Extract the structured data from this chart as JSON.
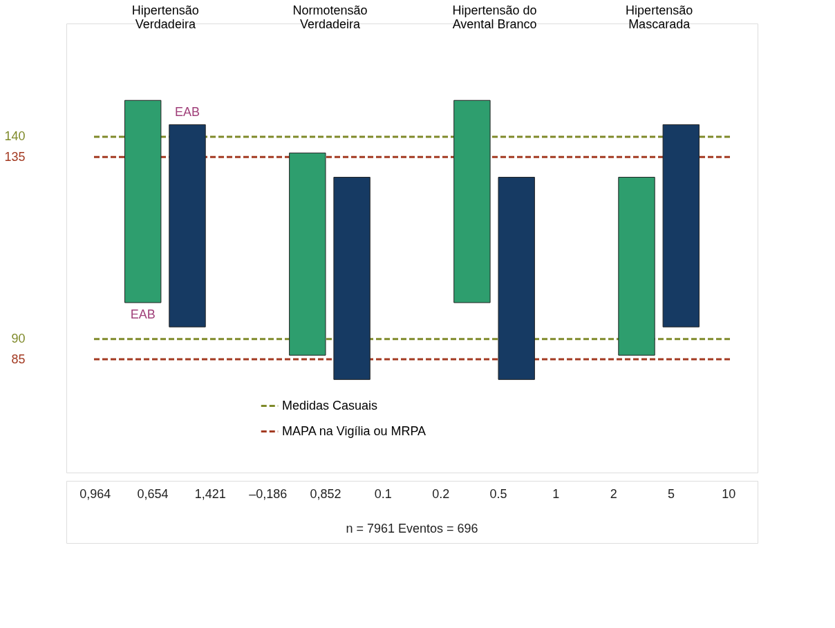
{
  "chart_data": {
    "type": "bar",
    "categories": [
      "Hipertensão\nVerdadeira",
      "Normotensão\nVerdadeira",
      "Hipertensão do\nAvental Branco",
      "Hipertensão\nMascarada"
    ],
    "series": [
      {
        "color": "#2e9e6e",
        "values": [
          50,
          50,
          50,
          44
        ],
        "base": [
          99,
          86,
          99,
          86
        ]
      },
      {
        "color": "#163a63",
        "values": [
          50,
          50,
          50,
          50
        ],
        "base": [
          93,
          80,
          80,
          93
        ]
      }
    ],
    "ylim": [
      57,
      168
    ],
    "yticks": [
      85,
      90,
      135,
      140
    ],
    "ref_lines": [
      {
        "axis": "y",
        "value": 140,
        "label": "Medidas Casuais",
        "color": "#7f8a2a",
        "line_style": "dashed"
      },
      {
        "axis": "y",
        "value": 90,
        "color": "#7f8a2a",
        "line_style": "dashed"
      },
      {
        "axis": "y",
        "value": 135,
        "label": "MAPA na Vigília ou MRPA",
        "color": "#a33a22",
        "line_style": "dashed"
      },
      {
        "axis": "y",
        "value": 85,
        "color": "#a33a22",
        "line_style": "dashed"
      }
    ],
    "annotations": [
      "EAB",
      "EAB",
      "0,964",
      "0,654",
      "1,421",
      "–0,186",
      "0,852",
      "0.1",
      "0.2",
      "0.5",
      "1",
      "2",
      "5",
      "10",
      "n = 7961 Eventos = 696"
    ],
    "grid": false,
    "legend": "bottom"
  }
}
